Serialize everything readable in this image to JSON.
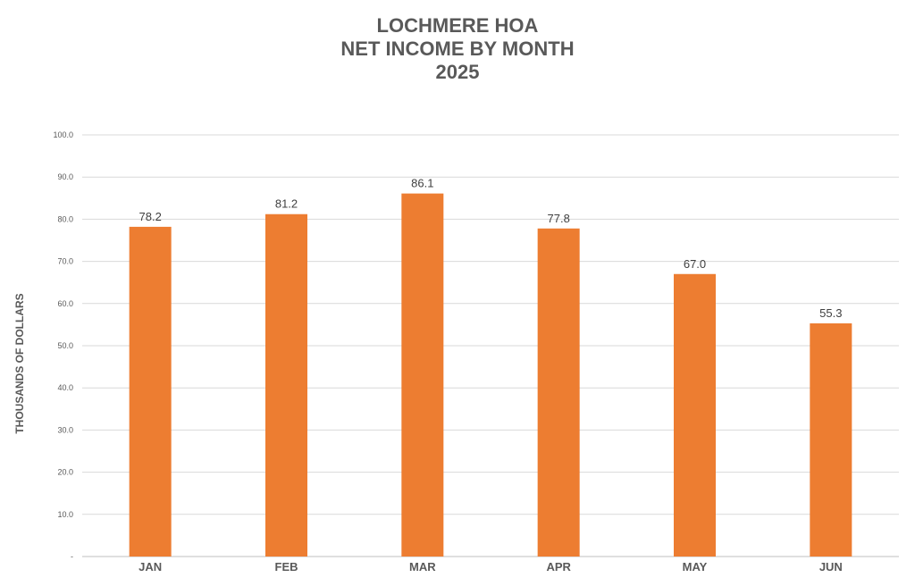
{
  "chart_data": {
    "type": "bar",
    "title_lines": [
      "LOCHMERE HOA",
      "NET INCOME BY MONTH",
      "2025"
    ],
    "ylabel": "THOUSANDS OF DOLLARS",
    "xlabel": "",
    "categories": [
      "JAN",
      "FEB",
      "MAR",
      "APR",
      "MAY",
      "JUN"
    ],
    "values": [
      78.2,
      81.2,
      86.1,
      77.8,
      67.0,
      55.3
    ],
    "value_labels": [
      "78.2",
      "81.2",
      "86.1",
      "77.8",
      "67.0",
      "55.3"
    ],
    "ylim": [
      0,
      100
    ],
    "yticks": [
      0,
      10,
      20,
      30,
      40,
      50,
      60,
      70,
      80,
      90,
      100
    ],
    "ytick_labels": [
      "-",
      "10.0",
      "20.0",
      "30.0",
      "40.0",
      "50.0",
      "60.0",
      "70.0",
      "80.0",
      "90.0",
      "100.0"
    ],
    "grid": true,
    "legend": "none",
    "bar_color": "#ED7D31",
    "grid_color": "#D9D9D9"
  }
}
